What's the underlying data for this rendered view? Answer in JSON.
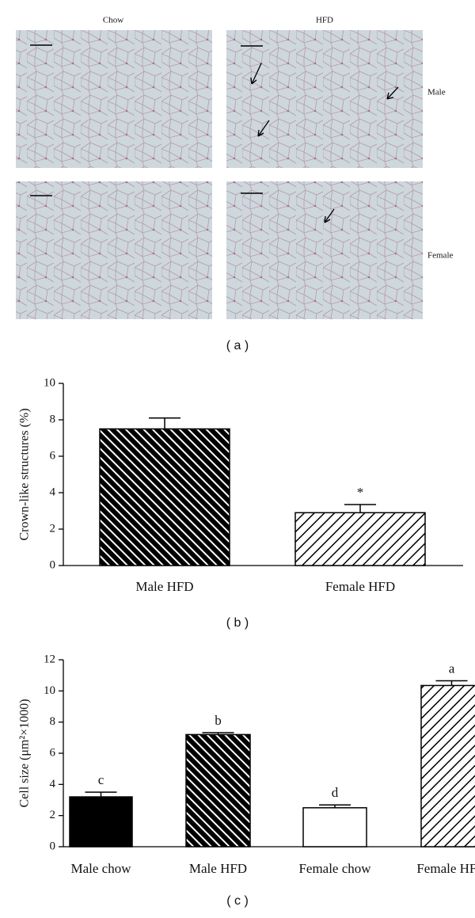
{
  "panel_a": {
    "columns": [
      "Chow",
      "HFD"
    ],
    "rows": [
      "Male",
      "Female"
    ],
    "caption": "( a )"
  },
  "chart_data": [
    {
      "type": "bar",
      "y_label": "Crown-like structures (%)",
      "categories": [
        "Male HFD",
        "Female HFD"
      ],
      "values": [
        7.5,
        2.9
      ],
      "errors": [
        0.6,
        0.45
      ],
      "annotations": [
        "",
        "*"
      ],
      "fill_styles": [
        "dense-hatch",
        "hatch"
      ],
      "ylim": [
        0,
        10
      ],
      "yticks": [
        0,
        2,
        4,
        6,
        8,
        10
      ],
      "caption": "( b )"
    },
    {
      "type": "bar",
      "y_label": "Cell size (μm²×1000)",
      "categories": [
        "Male chow",
        "Male HFD",
        "Female chow",
        "Female HFD"
      ],
      "values": [
        3.2,
        7.2,
        2.5,
        10.35
      ],
      "errors": [
        0.3,
        0.12,
        0.18,
        0.3
      ],
      "annotations": [
        "c",
        "b",
        "d",
        "a"
      ],
      "fill_styles": [
        "solid",
        "dense-hatch",
        "white",
        "hatch"
      ],
      "ylim": [
        0,
        12
      ],
      "yticks": [
        0,
        2,
        4,
        6,
        8,
        10,
        12
      ],
      "caption": "( c )"
    }
  ]
}
